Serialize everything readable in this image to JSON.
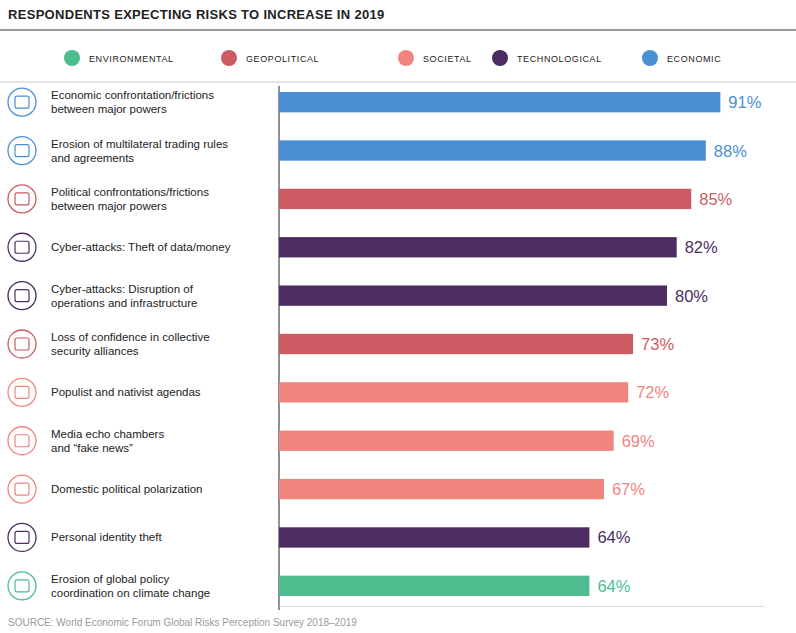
{
  "chart_data": {
    "type": "bar",
    "orientation": "horizontal",
    "title": "RESPONDENTS EXPECTING RISKS TO INCREASE IN 2019",
    "source": "SOURCE: World Economic Forum Global Risks Perception Survey 2018–2019",
    "categories": [
      "Economic confrontation/frictions\nbetween major powers",
      "Erosion of multilateral trading rules\nand agreements",
      "Political confrontations/frictions\nbetween major powers",
      "Cyber-attacks: Theft of data/money",
      "Cyber-attacks: Disruption of\noperations and infrastructure",
      "Loss of confidence in collective\nsecurity alliances",
      "Populist and nativist agendas",
      "Media echo chambers\nand “fake news”",
      "Domestic political polarization",
      "Personal identity theft",
      "Erosion of global policy\ncoordination on climate change"
    ],
    "series": [
      {
        "name": "ENVIRONMENTAL",
        "color": "#4dbd8f",
        "values": [
          null,
          null,
          null,
          null,
          null,
          null,
          null,
          null,
          null,
          null,
          64
        ],
        "value_labels": [
          null,
          null,
          null,
          null,
          null,
          null,
          null,
          null,
          null,
          null,
          "64%"
        ]
      },
      {
        "name": "GEOPOLITICAL",
        "color": "#cd5b63",
        "values": [
          null,
          null,
          85,
          null,
          null,
          73,
          null,
          null,
          null,
          null,
          null
        ],
        "value_labels": [
          null,
          null,
          "85%",
          null,
          null,
          "73%",
          null,
          null,
          null,
          null,
          null
        ]
      },
      {
        "name": "SOCIETAL",
        "color": "#f0847f",
        "values": [
          null,
          null,
          null,
          null,
          null,
          null,
          72,
          69,
          67,
          null,
          null
        ],
        "value_labels": [
          null,
          null,
          null,
          null,
          null,
          null,
          "72%",
          "69%",
          "67%",
          null,
          null
        ]
      },
      {
        "name": "TECHNOLOGICAL",
        "color": "#4b2d63",
        "values": [
          null,
          null,
          null,
          82,
          80,
          null,
          null,
          null,
          null,
          64,
          null
        ],
        "value_labels": [
          null,
          null,
          null,
          "82%",
          "80%",
          null,
          null,
          null,
          null,
          "64%",
          null
        ]
      },
      {
        "name": "ECONOMIC",
        "color": "#4a8fd1",
        "values": [
          91,
          88,
          null,
          null,
          null,
          null,
          null,
          null,
          null,
          null,
          null
        ],
        "value_labels": [
          "91%",
          "88%",
          null,
          null,
          null,
          null,
          null,
          null,
          null,
          null,
          null
        ]
      }
    ],
    "xlim": [
      0,
      100
    ],
    "tick_labels": false,
    "data_labels": true,
    "legend": "top",
    "grid": false
  }
}
